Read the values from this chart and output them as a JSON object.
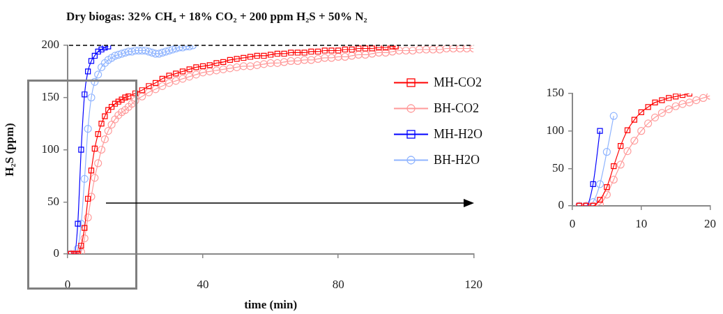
{
  "chart_data": [
    {
      "type": "line",
      "title": "Dry biogas: 32% CH₄ + 18% CO₂ + 200 ppm H₂S + 50% N₂",
      "xlabel": "time (min)",
      "ylabel": "H₂S (ppm)",
      "xlim": [
        0,
        120
      ],
      "xticks": [
        0,
        40,
        80,
        120
      ],
      "ylim": [
        0,
        200
      ],
      "yticks": [
        0,
        50,
        100,
        150,
        200
      ],
      "grid": false,
      "legend": "right",
      "ref_lines": [
        {
          "axis": "y",
          "value": 200,
          "color": "#000000",
          "line_style": "dashed"
        }
      ],
      "series": [
        {
          "name": "MH-CO2",
          "color": "#ff0000",
          "marker": "square",
          "x": [
            1,
            2,
            3,
            4,
            5,
            6,
            7,
            8,
            9,
            10,
            11,
            12,
            13,
            14,
            15,
            16,
            17,
            18,
            20,
            22,
            24,
            26,
            28,
            30,
            32,
            34,
            36,
            38,
            40,
            42,
            44,
            46,
            48,
            50,
            52,
            54,
            56,
            58,
            60,
            62,
            64,
            66,
            68,
            70,
            72,
            74,
            76,
            78,
            80,
            82,
            84,
            86,
            88,
            90,
            92,
            94,
            96,
            97
          ],
          "values": [
            0,
            0,
            0,
            8,
            25,
            53,
            80,
            101,
            115,
            125,
            132,
            138,
            141,
            144,
            146,
            148,
            150,
            151,
            154,
            157,
            161,
            164,
            168,
            171,
            173,
            175,
            177,
            179,
            180,
            181,
            183,
            184,
            186,
            187,
            188,
            189,
            190,
            190,
            191,
            192,
            192,
            193,
            193,
            193,
            194,
            194,
            195,
            195,
            195,
            196,
            196,
            197,
            197,
            197,
            198,
            198,
            199,
            199
          ]
        },
        {
          "name": "BH-CO2",
          "color": "#ff9a9a",
          "marker": "circle",
          "x": [
            1,
            2,
            3,
            4,
            5,
            6,
            7,
            8,
            9,
            10,
            11,
            12,
            13,
            14,
            15,
            16,
            17,
            18,
            19,
            20,
            22,
            24,
            26,
            28,
            30,
            32,
            34,
            36,
            38,
            40,
            42,
            44,
            46,
            48,
            50,
            52,
            54,
            56,
            58,
            60,
            62,
            64,
            66,
            68,
            70,
            72,
            74,
            76,
            78,
            80,
            82,
            84,
            86,
            88,
            90,
            92,
            94,
            96,
            98,
            100,
            102,
            104,
            106,
            108,
            110,
            112,
            114,
            116,
            118,
            120
          ],
          "values": [
            0,
            0,
            0,
            2,
            15,
            35,
            55,
            73,
            87,
            100,
            110,
            118,
            124,
            129,
            133,
            136,
            138,
            141,
            144,
            147,
            151,
            155,
            158,
            161,
            164,
            166,
            168,
            170,
            172,
            174,
            175,
            176,
            177,
            178,
            179,
            180,
            180,
            181,
            182,
            183,
            183,
            184,
            185,
            185,
            186,
            186,
            187,
            188,
            188,
            189,
            189,
            190,
            191,
            191,
            192,
            193,
            193,
            194,
            195,
            195,
            195,
            196,
            196,
            196,
            196,
            197,
            197,
            197,
            197,
            197
          ]
        },
        {
          "name": "MH-H2O",
          "color": "#0000ff",
          "marker": "square",
          "x": [
            1,
            2,
            3,
            4,
            5,
            6,
            7,
            8,
            9,
            10,
            11,
            12
          ],
          "values": [
            0,
            0,
            29,
            100,
            153,
            175,
            185,
            190,
            194,
            196,
            198,
            199
          ]
        },
        {
          "name": "BH-H2O",
          "color": "#8fb4ff",
          "marker": "circle",
          "x": [
            1,
            2,
            3,
            4,
            5,
            6,
            7,
            8,
            9,
            10,
            11,
            12,
            13,
            14,
            15,
            16,
            17,
            18,
            19,
            20,
            21,
            22,
            23,
            24,
            25,
            26,
            27,
            28,
            29,
            30,
            31,
            32,
            33,
            34,
            35,
            36,
            37
          ],
          "values": [
            0,
            0,
            5,
            29,
            72,
            120,
            150,
            165,
            172,
            179,
            183,
            186,
            188,
            190,
            191,
            192,
            193,
            194,
            194,
            195,
            195,
            195,
            195,
            194,
            193,
            192,
            192,
            193,
            194,
            195,
            196,
            197,
            198,
            198,
            199,
            199,
            200
          ]
        }
      ]
    },
    {
      "type": "line",
      "xlim": [
        0,
        20
      ],
      "xticks": [
        0,
        10,
        20
      ],
      "ylim": [
        0,
        150
      ],
      "yticks": [
        0,
        50,
        100,
        150
      ],
      "grid": false,
      "series": [
        {
          "color": "#ff0000",
          "marker": "square",
          "x": [
            1,
            2,
            3,
            4,
            5,
            6,
            7,
            8,
            9,
            10,
            11,
            12,
            13,
            14,
            15,
            16,
            17
          ],
          "values": [
            0,
            0,
            0,
            8,
            25,
            53,
            80,
            101,
            115,
            125,
            132,
            138,
            141,
            144,
            146,
            148,
            150
          ]
        },
        {
          "color": "#ff9a9a",
          "marker": "circle",
          "x": [
            1,
            2,
            3,
            4,
            5,
            6,
            7,
            8,
            9,
            10,
            11,
            12,
            13,
            14,
            15,
            16,
            17,
            18,
            19,
            20
          ],
          "values": [
            0,
            0,
            0,
            2,
            15,
            35,
            55,
            73,
            87,
            100,
            110,
            118,
            124,
            129,
            133,
            136,
            138,
            141,
            144,
            147
          ]
        },
        {
          "color": "#0000ff",
          "marker": "square",
          "x": [
            1,
            2,
            3,
            4
          ],
          "values": [
            0,
            0,
            29,
            100
          ]
        },
        {
          "color": "#8fb4ff",
          "marker": "circle",
          "x": [
            1,
            2,
            3,
            4,
            5,
            6
          ],
          "values": [
            0,
            0,
            5,
            29,
            72,
            120
          ]
        }
      ]
    }
  ]
}
